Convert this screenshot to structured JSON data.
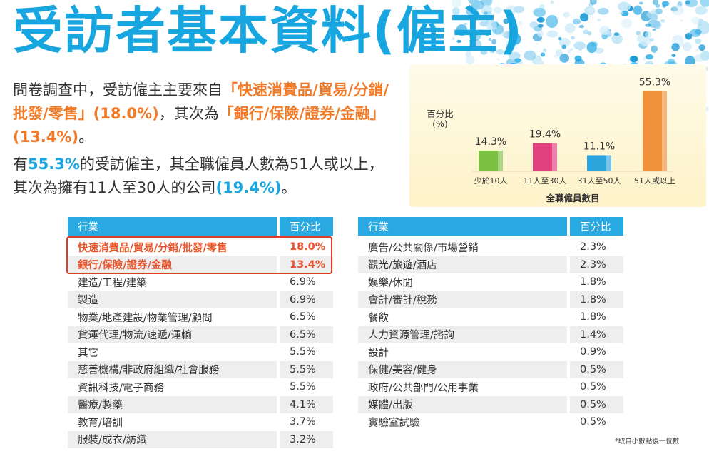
{
  "title": "受訪者基本資料(僱主)",
  "para1": {
    "t1": "問卷調查中，受訪僱主主要來自",
    "h1": "「快速消費品/貿易/分銷/批發/零售」",
    "p1": "(18.0%)",
    "t2": "，其次為",
    "h2": "「銀行/保險/證券/金融」",
    "p2": "(13.4%)",
    "t3": "。"
  },
  "para2": {
    "t1": "有",
    "h1": "55.3%",
    "t2": "的受訪僱主，其全職僱員人數為51人或以上，其次為擁有11人至30人的公司",
    "h2": "(19.4%)",
    "t3": "。"
  },
  "chart_data": {
    "type": "bar",
    "categories": [
      "少於10人",
      "11人至30人",
      "31人至50人",
      "51人或以上"
    ],
    "values": [
      14.3,
      19.4,
      11.1,
      55.3
    ],
    "value_labels": [
      "14.3%",
      "19.4%",
      "11.1%",
      "55.3%"
    ],
    "colors": [
      "#7cc242",
      "#e2407e",
      "#2ea4dc",
      "#f0903a"
    ],
    "title": "",
    "ylabel": "百分比\n(%)",
    "xlabel": "全職僱員數目",
    "ylim": [
      0,
      60
    ],
    "grid": false
  },
  "table_left": {
    "headers": [
      "行業",
      "百分比"
    ],
    "rows": [
      [
        "快速消費品/貿易/分銷/批發/零售",
        "18.0%"
      ],
      [
        "銀行/保險/證券/金融",
        "13.4%"
      ],
      [
        "建造/工程/建築",
        "6.9%"
      ],
      [
        "製造",
        "6.9%"
      ],
      [
        "物業/地產建設/物業管理/顧問",
        "6.5%"
      ],
      [
        "貨運代理/物流/速遞/運輸",
        "6.5%"
      ],
      [
        "其它",
        "5.5%"
      ],
      [
        "慈善機構/非政府組織/社會服務",
        "5.5%"
      ],
      [
        "資訊科技/電子商務",
        "5.5%"
      ],
      [
        "醫療/製藥",
        "4.1%"
      ],
      [
        "教育/培訓",
        "3.7%"
      ],
      [
        "服裝/成衣/紡織",
        "3.2%"
      ]
    ]
  },
  "table_right": {
    "headers": [
      "行業",
      "百分比"
    ],
    "rows": [
      [
        "廣告/公共關係/市場營銷",
        "2.3%"
      ],
      [
        "觀光/旅遊/酒店",
        "2.3%"
      ],
      [
        "娛樂/休閒",
        "1.8%"
      ],
      [
        "會計/審計/稅務",
        "1.8%"
      ],
      [
        "餐飲",
        "1.8%"
      ],
      [
        "人力資源管理/諮詢",
        "1.4%"
      ],
      [
        "設計",
        "0.9%"
      ],
      [
        "保健/美容/健身",
        "0.5%"
      ],
      [
        "政府/公共部門/公用事業",
        "0.5%"
      ],
      [
        "媒體/出版",
        "0.5%"
      ],
      [
        "實驗室試驗",
        "0.5%"
      ]
    ]
  },
  "note": "*取自小數點後一位數",
  "colors": {
    "title": "#17a6e0",
    "highlight": "#f07a28",
    "header": "#29a9e1",
    "box": "#e23b2e"
  }
}
